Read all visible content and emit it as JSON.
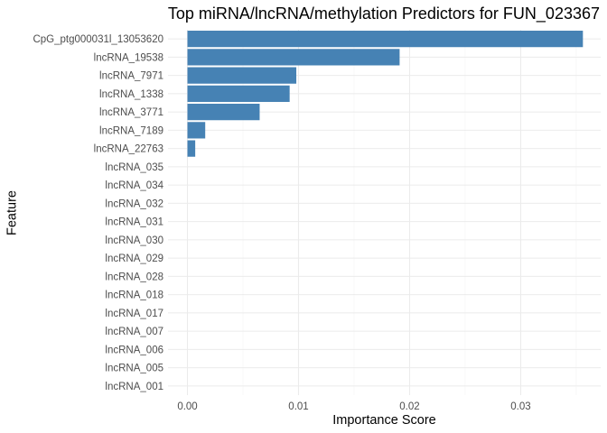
{
  "chart_data": {
    "type": "bar",
    "orientation": "horizontal",
    "title": "Top miRNA/lncRNA/methylation Predictors for FUN_023367",
    "xlabel": "Importance Score",
    "ylabel": "Feature",
    "xlim": [
      -0.00175,
      0.0372
    ],
    "x_ticks": [
      0.0,
      0.01,
      0.02,
      0.03
    ],
    "x_tick_labels": [
      "0.00",
      "0.01",
      "0.02",
      "0.03"
    ],
    "bar_color": "#4682b4",
    "grid": true,
    "categories": [
      "CpG_ptg000031l_13053620",
      "lncRNA_19538",
      "lncRNA_7971",
      "lncRNA_1338",
      "lncRNA_3771",
      "lncRNA_7189",
      "lncRNA_22763",
      "lncRNA_035",
      "lncRNA_034",
      "lncRNA_032",
      "lncRNA_031",
      "lncRNA_030",
      "lncRNA_029",
      "lncRNA_028",
      "lncRNA_018",
      "lncRNA_017",
      "lncRNA_007",
      "lncRNA_006",
      "lncRNA_005",
      "lncRNA_001"
    ],
    "values": [
      0.0356,
      0.0191,
      0.0098,
      0.0092,
      0.0065,
      0.0016,
      0.0007,
      0,
      0,
      0,
      0,
      0,
      0,
      0,
      0,
      0,
      0,
      0,
      0,
      0
    ]
  }
}
